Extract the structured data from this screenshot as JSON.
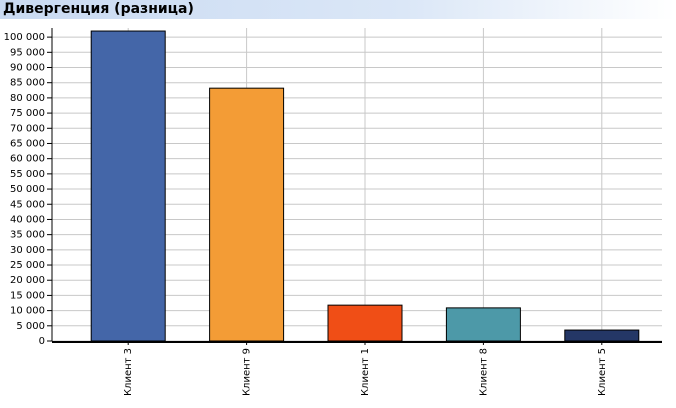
{
  "chart_data": {
    "type": "bar",
    "title": "Дивергенция (разница)",
    "categories": [
      "Клиент 3",
      "Клиент 9",
      "Клиент 1",
      "Клиент 8",
      "Клиент 5"
    ],
    "values": [
      102000,
      83200,
      11800,
      10900,
      3600
    ],
    "colors": [
      "#4466a8",
      "#f39c36",
      "#f04e16",
      "#4d99a8",
      "#243766"
    ],
    "ylim": [
      0,
      103000
    ],
    "yticks": [
      0,
      {
        "value": 5000,
        "label": "5 000"
      },
      {
        "value": 10000,
        "label": "10 000"
      },
      {
        "value": 15000,
        "label": "15 000"
      },
      {
        "value": 20000,
        "label": "20 000"
      },
      {
        "value": 25000,
        "label": "25 000"
      },
      {
        "value": 30000,
        "label": "30 000"
      },
      {
        "value": 35000,
        "label": "35 000"
      },
      {
        "value": 40000,
        "label": "40 000"
      },
      {
        "value": 45000,
        "label": "45 000"
      },
      {
        "value": 50000,
        "label": "50 000"
      },
      {
        "value": 55000,
        "label": "55 000"
      },
      {
        "value": 60000,
        "label": "60 000"
      },
      {
        "value": 65000,
        "label": "65 000"
      },
      {
        "value": 70000,
        "label": "70 000"
      },
      {
        "value": 75000,
        "label": "75 000"
      },
      {
        "value": 80000,
        "label": "80 000"
      },
      {
        "value": 85000,
        "label": "85 000"
      },
      {
        "value": 90000,
        "label": "90 000"
      },
      {
        "value": 95000,
        "label": "95 000"
      },
      {
        "value": 100000,
        "label": "100 000"
      }
    ],
    "grid": true
  }
}
